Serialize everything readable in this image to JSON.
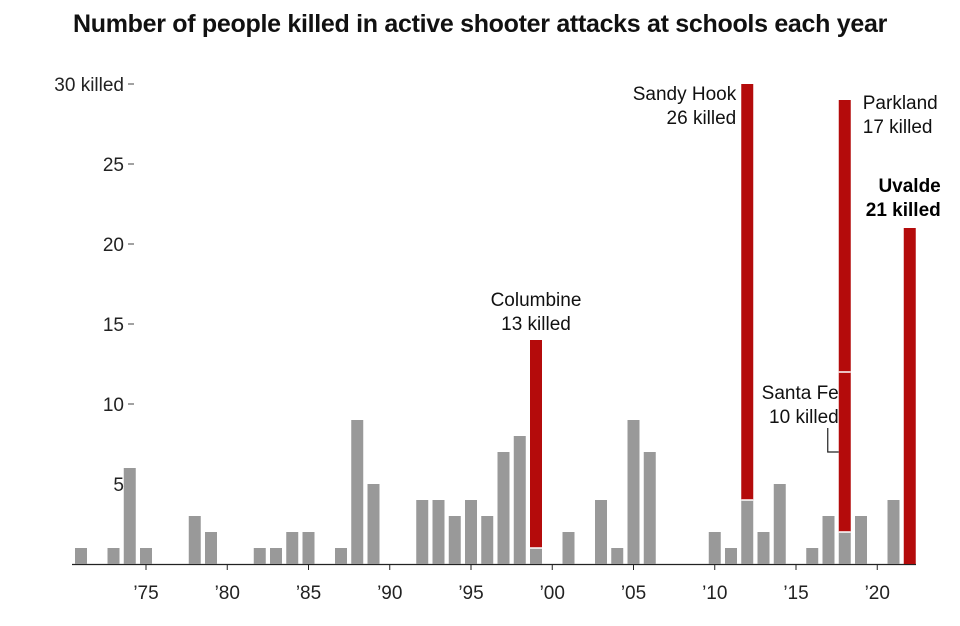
{
  "chart_data": {
    "type": "bar",
    "title": "Number of people killed in active shooter attacks at schools each year",
    "xlabel": "",
    "ylabel": "",
    "ylim": [
      0,
      30
    ],
    "y_ticks": [
      {
        "value": 5,
        "label": "5"
      },
      {
        "value": 10,
        "label": "10"
      },
      {
        "value": 15,
        "label": "15"
      },
      {
        "value": 20,
        "label": "20"
      },
      {
        "value": 25,
        "label": "25"
      },
      {
        "value": 30,
        "label": "30 killed"
      }
    ],
    "x_ticks": [
      {
        "year": 1975,
        "label": "’75"
      },
      {
        "year": 1980,
        "label": "’80"
      },
      {
        "year": 1985,
        "label": "’85"
      },
      {
        "year": 1990,
        "label": "’90"
      },
      {
        "year": 1995,
        "label": "’95"
      },
      {
        "year": 2000,
        "label": "’00"
      },
      {
        "year": 2005,
        "label": "’05"
      },
      {
        "year": 2010,
        "label": "’10"
      },
      {
        "year": 2015,
        "label": "’15"
      },
      {
        "year": 2020,
        "label": "’20"
      }
    ],
    "colors": {
      "other": "#999999",
      "highlight": "#b40b0b"
    },
    "bars": [
      {
        "year": 1971,
        "other": 1,
        "highlight": 0
      },
      {
        "year": 1973,
        "other": 1,
        "highlight": 0
      },
      {
        "year": 1974,
        "other": 6,
        "highlight": 0
      },
      {
        "year": 1975,
        "other": 1,
        "highlight": 0
      },
      {
        "year": 1978,
        "other": 3,
        "highlight": 0
      },
      {
        "year": 1979,
        "other": 2,
        "highlight": 0
      },
      {
        "year": 1982,
        "other": 1,
        "highlight": 0
      },
      {
        "year": 1983,
        "other": 1,
        "highlight": 0
      },
      {
        "year": 1984,
        "other": 2,
        "highlight": 0
      },
      {
        "year": 1985,
        "other": 2,
        "highlight": 0
      },
      {
        "year": 1987,
        "other": 1,
        "highlight": 0
      },
      {
        "year": 1988,
        "other": 9,
        "highlight": 0
      },
      {
        "year": 1989,
        "other": 5,
        "highlight": 0
      },
      {
        "year": 1992,
        "other": 4,
        "highlight": 0
      },
      {
        "year": 1993,
        "other": 4,
        "highlight": 0
      },
      {
        "year": 1994,
        "other": 3,
        "highlight": 0
      },
      {
        "year": 1995,
        "other": 4,
        "highlight": 0
      },
      {
        "year": 1996,
        "other": 3,
        "highlight": 0
      },
      {
        "year": 1997,
        "other": 7,
        "highlight": 0
      },
      {
        "year": 1998,
        "other": 8,
        "highlight": 0
      },
      {
        "year": 1999,
        "other": 1,
        "highlight": 13
      },
      {
        "year": 2001,
        "other": 2,
        "highlight": 0
      },
      {
        "year": 2003,
        "other": 4,
        "highlight": 0
      },
      {
        "year": 2004,
        "other": 1,
        "highlight": 0
      },
      {
        "year": 2005,
        "other": 9,
        "highlight": 0
      },
      {
        "year": 2006,
        "other": 7,
        "highlight": 0
      },
      {
        "year": 2010,
        "other": 2,
        "highlight": 0
      },
      {
        "year": 2011,
        "other": 1,
        "highlight": 0
      },
      {
        "year": 2012,
        "other": 4,
        "highlight": 26
      },
      {
        "year": 2013,
        "other": 2,
        "highlight": 0
      },
      {
        "year": 2014,
        "other": 5,
        "highlight": 0
      },
      {
        "year": 2016,
        "other": 1,
        "highlight": 0
      },
      {
        "year": 2017,
        "other": 3,
        "highlight": 0
      },
      {
        "year": 2018,
        "other": 2,
        "highlight": 27,
        "split": 10
      },
      {
        "year": 2019,
        "other": 3,
        "highlight": 0
      },
      {
        "year": 2021,
        "other": 4,
        "highlight": 0
      },
      {
        "year": 2022,
        "other": 0,
        "highlight": 21
      }
    ],
    "annotations": [
      {
        "year": 1999,
        "lines": [
          "Columbine",
          "13 killed"
        ],
        "bold": false
      },
      {
        "year": 2012,
        "lines": [
          "Sandy Hook",
          "26 killed"
        ],
        "bold": false
      },
      {
        "year": 2018,
        "lines": [
          "Parkland",
          "17 killed"
        ],
        "bold": false
      },
      {
        "year": 2018,
        "lines": [
          "Santa Fe",
          "10 killed"
        ],
        "bold": false
      },
      {
        "year": 2022,
        "lines": [
          "Uvalde",
          "21 killed"
        ],
        "bold": true
      }
    ]
  }
}
